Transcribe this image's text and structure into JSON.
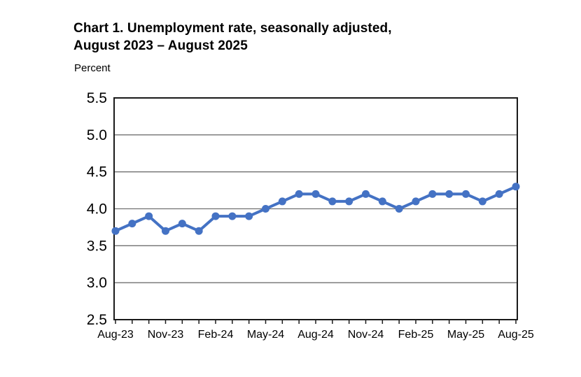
{
  "header": {
    "title_lines": [
      "Chart 1. Unemployment rate, seasonally adjusted,",
      "August 2023 – August 2025"
    ]
  },
  "chart_data": {
    "type": "line",
    "title": "Chart 1. Unemployment rate, seasonally adjusted, August 2023 – August 2025",
    "ylabel": "Percent",
    "xlabel": "",
    "series_name": "Unemployment rate, seasonally adjusted",
    "x": [
      "Aug-23",
      "Sep-23",
      "Oct-23",
      "Nov-23",
      "Dec-23",
      "Jan-24",
      "Feb-24",
      "Mar-24",
      "Apr-24",
      "May-24",
      "Jun-24",
      "Jul-24",
      "Aug-24",
      "Sep-24",
      "Oct-24",
      "Nov-24",
      "Dec-24",
      "Jan-25",
      "Feb-25",
      "Mar-25",
      "Apr-25",
      "May-25",
      "Jun-25",
      "Jul-25",
      "Aug-25"
    ],
    "values": [
      3.7,
      3.8,
      3.9,
      3.7,
      3.8,
      3.7,
      3.9,
      3.9,
      3.9,
      4.0,
      4.1,
      4.2,
      4.2,
      4.1,
      4.1,
      4.2,
      4.1,
      4.0,
      4.1,
      4.2,
      4.2,
      4.2,
      4.1,
      4.2,
      4.3
    ],
    "x_tick_labels": [
      "Aug-23",
      "Nov-23",
      "Feb-24",
      "May-24",
      "Aug-24",
      "Nov-24",
      "Feb-25",
      "May-25",
      "Aug-25"
    ],
    "x_tick_label_every": 3,
    "ylim": [
      2.5,
      5.5
    ],
    "y_tick_step": 0.5,
    "y_tick_labels": [
      "2.5",
      "3.0",
      "3.5",
      "4.0",
      "4.5",
      "5.0",
      "5.5"
    ],
    "grid": "horizontal",
    "legend": "none",
    "colors": {
      "line": "#4472C4",
      "marker": "#4472C4",
      "grid": "#707070",
      "axis": "#1a1a1a",
      "text": "#000000",
      "background": "#ffffff"
    }
  }
}
